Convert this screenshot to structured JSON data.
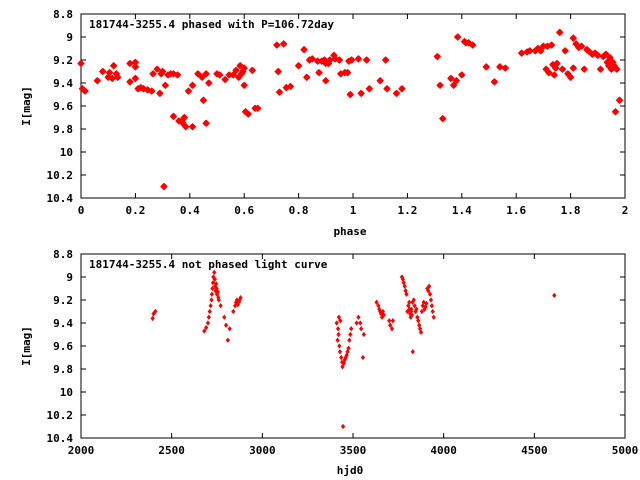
{
  "colors": {
    "points": "#ff0000",
    "axes": "#000000"
  },
  "chart_data": [
    {
      "type": "scatter",
      "title": "181744-3255.4 phased with P=106.72day",
      "xlabel": "phase",
      "ylabel": "I[mag]",
      "xlim": [
        0,
        2
      ],
      "ylim": [
        8.8,
        10.4
      ],
      "y_inverted": true,
      "grid": false,
      "xticks": [
        "0",
        "0.2",
        "0.4",
        "0.6",
        "0.8",
        "1",
        "1.2",
        "1.4",
        "1.6",
        "1.8",
        "2"
      ],
      "yticks": [
        "8.8",
        "9",
        "9.2",
        "9.4",
        "9.6",
        "9.8",
        "10",
        "10.2",
        "10.4"
      ],
      "marker": "star",
      "points": [
        [
          0.0,
          9.23
        ],
        [
          0.005,
          9.45
        ],
        [
          0.015,
          9.47
        ],
        [
          0.06,
          9.38
        ],
        [
          0.08,
          9.3
        ],
        [
          0.1,
          9.35
        ],
        [
          0.105,
          9.31
        ],
        [
          0.115,
          9.36
        ],
        [
          0.12,
          9.25
        ],
        [
          0.13,
          9.32
        ],
        [
          0.135,
          9.35
        ],
        [
          0.18,
          9.23
        ],
        [
          0.18,
          9.39
        ],
        [
          0.2,
          9.22
        ],
        [
          0.2,
          9.26
        ],
        [
          0.2,
          9.36
        ],
        [
          0.21,
          9.45
        ],
        [
          0.22,
          9.44
        ],
        [
          0.23,
          9.45
        ],
        [
          0.245,
          9.46
        ],
        [
          0.26,
          9.47
        ],
        [
          0.265,
          9.32
        ],
        [
          0.28,
          9.28
        ],
        [
          0.29,
          9.49
        ],
        [
          0.295,
          9.32
        ],
        [
          0.3,
          9.3
        ],
        [
          0.305,
          10.3
        ],
        [
          0.31,
          9.42
        ],
        [
          0.32,
          9.33
        ],
        [
          0.33,
          9.32
        ],
        [
          0.34,
          9.69
        ],
        [
          0.34,
          9.32
        ],
        [
          0.355,
          9.33
        ],
        [
          0.36,
          9.73
        ],
        [
          0.37,
          9.73
        ],
        [
          0.375,
          9.75
        ],
        [
          0.38,
          9.7
        ],
        [
          0.385,
          9.78
        ],
        [
          0.395,
          9.47
        ],
        [
          0.41,
          9.42
        ],
        [
          0.41,
          9.78
        ],
        [
          0.43,
          9.32
        ],
        [
          0.445,
          9.35
        ],
        [
          0.45,
          9.55
        ],
        [
          0.46,
          9.32
        ],
        [
          0.46,
          9.75
        ],
        [
          0.47,
          9.4
        ],
        [
          0.5,
          9.32
        ],
        [
          0.51,
          9.33
        ],
        [
          0.53,
          9.37
        ],
        [
          0.545,
          9.33
        ],
        [
          0.56,
          9.33
        ],
        [
          0.57,
          9.29
        ],
        [
          0.58,
          9.35
        ],
        [
          0.585,
          9.25
        ],
        [
          0.59,
          9.32
        ],
        [
          0.595,
          9.3
        ],
        [
          0.6,
          9.27
        ],
        [
          0.6,
          9.42
        ],
        [
          0.605,
          9.65
        ],
        [
          0.615,
          9.67
        ],
        [
          0.63,
          9.29
        ],
        [
          0.64,
          9.62
        ],
        [
          0.65,
          9.62
        ],
        [
          0.72,
          9.07
        ],
        [
          0.725,
          9.3
        ],
        [
          0.73,
          9.48
        ],
        [
          0.745,
          9.06
        ],
        [
          0.755,
          9.44
        ],
        [
          0.77,
          9.43
        ],
        [
          0.8,
          9.25
        ],
        [
          0.82,
          9.11
        ],
        [
          0.83,
          9.35
        ],
        [
          0.84,
          9.2
        ],
        [
          0.85,
          9.19
        ],
        [
          0.87,
          9.21
        ],
        [
          0.875,
          9.31
        ],
        [
          0.885,
          9.21
        ],
        [
          0.895,
          9.2
        ],
        [
          0.9,
          9.23
        ],
        [
          0.9,
          9.38
        ],
        [
          0.91,
          9.23
        ],
        [
          0.915,
          9.2
        ],
        [
          0.93,
          9.16
        ],
        [
          0.935,
          9.19
        ],
        [
          0.95,
          9.2
        ],
        [
          0.955,
          9.32
        ],
        [
          0.97,
          9.31
        ],
        [
          0.98,
          9.31
        ],
        [
          0.985,
          9.21
        ],
        [
          0.99,
          9.5
        ],
        [
          0.995,
          9.2
        ],
        [
          1.02,
          9.19
        ],
        [
          1.03,
          9.49
        ],
        [
          1.05,
          9.2
        ],
        [
          1.06,
          9.45
        ],
        [
          1.1,
          9.38
        ],
        [
          1.12,
          9.2
        ],
        [
          1.125,
          9.45
        ],
        [
          1.16,
          9.49
        ],
        [
          1.18,
          9.45
        ],
        [
          1.31,
          9.17
        ],
        [
          1.32,
          9.42
        ],
        [
          1.33,
          9.71
        ],
        [
          1.36,
          9.36
        ],
        [
          1.37,
          9.42
        ],
        [
          1.38,
          9.38
        ],
        [
          1.385,
          9.0
        ],
        [
          1.4,
          9.33
        ],
        [
          1.41,
          9.04
        ],
        [
          1.415,
          9.05
        ],
        [
          1.425,
          9.05
        ],
        [
          1.44,
          9.07
        ],
        [
          1.49,
          9.26
        ],
        [
          1.52,
          9.39
        ],
        [
          1.54,
          9.26
        ],
        [
          1.56,
          9.27
        ],
        [
          1.62,
          9.14
        ],
        [
          1.64,
          9.13
        ],
        [
          1.65,
          9.12
        ],
        [
          1.67,
          9.12
        ],
        [
          1.68,
          9.1
        ],
        [
          1.69,
          9.12
        ],
        [
          1.7,
          9.08
        ],
        [
          1.71,
          9.28
        ],
        [
          1.715,
          9.08
        ],
        [
          1.72,
          9.31
        ],
        [
          1.73,
          9.07
        ],
        [
          1.735,
          9.24
        ],
        [
          1.74,
          9.33
        ],
        [
          1.745,
          9.27
        ],
        [
          1.75,
          9.23
        ],
        [
          1.76,
          8.96
        ],
        [
          1.77,
          9.28
        ],
        [
          1.78,
          9.12
        ],
        [
          1.79,
          9.32
        ],
        [
          1.8,
          9.35
        ],
        [
          1.81,
          9.01
        ],
        [
          1.81,
          9.27
        ],
        [
          1.82,
          9.06
        ],
        [
          1.83,
          9.09
        ],
        [
          1.84,
          9.08
        ],
        [
          1.85,
          9.28
        ],
        [
          1.86,
          9.11
        ],
        [
          1.87,
          9.13
        ],
        [
          1.88,
          9.15
        ],
        [
          1.89,
          9.14
        ],
        [
          1.9,
          9.16
        ],
        [
          1.91,
          9.28
        ],
        [
          1.92,
          9.17
        ],
        [
          1.93,
          9.15
        ],
        [
          1.935,
          9.22
        ],
        [
          1.94,
          9.25
        ],
        [
          1.945,
          9.18
        ],
        [
          1.95,
          9.28
        ],
        [
          1.955,
          9.22
        ],
        [
          1.96,
          9.25
        ],
        [
          1.965,
          9.65
        ],
        [
          1.97,
          9.28
        ],
        [
          1.98,
          9.55
        ]
      ]
    },
    {
      "type": "scatter",
      "title": "181744-3255.4 not phased light curve",
      "xlabel": "hjd0",
      "ylabel": "I[mag]",
      "xlim": [
        2000,
        5000
      ],
      "ylim": [
        8.8,
        10.4
      ],
      "y_inverted": true,
      "grid": false,
      "xticks": [
        "2000",
        "2500",
        "3000",
        "3500",
        "4000",
        "4500",
        "5000"
      ],
      "yticks": [
        "8.8",
        "9",
        "9.2",
        "9.4",
        "9.6",
        "9.8",
        "10",
        "10.2",
        "10.4"
      ],
      "marker": "diamond",
      "points": [
        [
          2395,
          9.36
        ],
        [
          2400,
          9.32
        ],
        [
          2410,
          9.3
        ],
        [
          2680,
          9.47
        ],
        [
          2690,
          9.44
        ],
        [
          2700,
          9.4
        ],
        [
          2705,
          9.35
        ],
        [
          2710,
          9.3
        ],
        [
          2715,
          9.25
        ],
        [
          2720,
          9.2
        ],
        [
          2722,
          9.15
        ],
        [
          2725,
          9.1
        ],
        [
          2728,
          9.05
        ],
        [
          2730,
          9.0
        ],
        [
          2735,
          8.96
        ],
        [
          2738,
          9.02
        ],
        [
          2740,
          9.08
        ],
        [
          2742,
          9.12
        ],
        [
          2745,
          9.06
        ],
        [
          2748,
          9.1
        ],
        [
          2750,
          9.15
        ],
        [
          2755,
          9.13
        ],
        [
          2758,
          9.18
        ],
        [
          2760,
          9.2
        ],
        [
          2770,
          9.25
        ],
        [
          2790,
          9.35
        ],
        [
          2800,
          9.42
        ],
        [
          2810,
          9.55
        ],
        [
          2820,
          9.45
        ],
        [
          2840,
          9.3
        ],
        [
          2850,
          9.25
        ],
        [
          2855,
          9.22
        ],
        [
          2860,
          9.2
        ],
        [
          2865,
          9.24
        ],
        [
          2870,
          9.22
        ],
        [
          2875,
          9.2
        ],
        [
          2880,
          9.18
        ],
        [
          3410,
          9.4
        ],
        [
          3415,
          9.55
        ],
        [
          3418,
          9.45
        ],
        [
          3420,
          9.5
        ],
        [
          3422,
          9.35
        ],
        [
          3425,
          9.6
        ],
        [
          3428,
          9.65
        ],
        [
          3430,
          9.38
        ],
        [
          3435,
          9.7
        ],
        [
          3440,
          9.74
        ],
        [
          3442,
          9.78
        ],
        [
          3445,
          10.3
        ],
        [
          3450,
          9.75
        ],
        [
          3455,
          9.72
        ],
        [
          3460,
          9.7
        ],
        [
          3465,
          9.68
        ],
        [
          3470,
          9.65
        ],
        [
          3475,
          9.62
        ],
        [
          3480,
          9.55
        ],
        [
          3485,
          9.5
        ],
        [
          3490,
          9.45
        ],
        [
          3520,
          9.4
        ],
        [
          3530,
          9.35
        ],
        [
          3540,
          9.4
        ],
        [
          3545,
          9.45
        ],
        [
          3555,
          9.7
        ],
        [
          3560,
          9.5
        ],
        [
          3630,
          9.22
        ],
        [
          3640,
          9.25
        ],
        [
          3645,
          9.28
        ],
        [
          3650,
          9.3
        ],
        [
          3655,
          9.32
        ],
        [
          3660,
          9.35
        ],
        [
          3665,
          9.3
        ],
        [
          3670,
          9.33
        ],
        [
          3700,
          9.38
        ],
        [
          3705,
          9.42
        ],
        [
          3715,
          9.45
        ],
        [
          3720,
          9.38
        ],
        [
          3770,
          9.0
        ],
        [
          3775,
          9.02
        ],
        [
          3780,
          9.05
        ],
        [
          3785,
          9.08
        ],
        [
          3790,
          9.12
        ],
        [
          3795,
          9.15
        ],
        [
          3800,
          9.3
        ],
        [
          3805,
          9.25
        ],
        [
          3810,
          9.22
        ],
        [
          3812,
          9.28
        ],
        [
          3815,
          9.32
        ],
        [
          3818,
          9.35
        ],
        [
          3820,
          9.3
        ],
        [
          3822,
          9.28
        ],
        [
          3825,
          9.33
        ],
        [
          3828,
          9.22
        ],
        [
          3830,
          9.65
        ],
        [
          3835,
          9.2
        ],
        [
          3840,
          9.25
        ],
        [
          3845,
          9.3
        ],
        [
          3850,
          9.28
        ],
        [
          3855,
          9.35
        ],
        [
          3860,
          9.38
        ],
        [
          3865,
          9.42
        ],
        [
          3870,
          9.45
        ],
        [
          3875,
          9.48
        ],
        [
          3880,
          9.3
        ],
        [
          3885,
          9.25
        ],
        [
          3890,
          9.22
        ],
        [
          3895,
          9.28
        ],
        [
          3900,
          9.26
        ],
        [
          3905,
          9.23
        ],
        [
          3910,
          9.1
        ],
        [
          3915,
          9.12
        ],
        [
          3920,
          9.08
        ],
        [
          3925,
          9.15
        ],
        [
          3930,
          9.2
        ],
        [
          3935,
          9.25
        ],
        [
          3940,
          9.3
        ],
        [
          3945,
          9.35
        ],
        [
          4610,
          9.16
        ]
      ]
    }
  ]
}
